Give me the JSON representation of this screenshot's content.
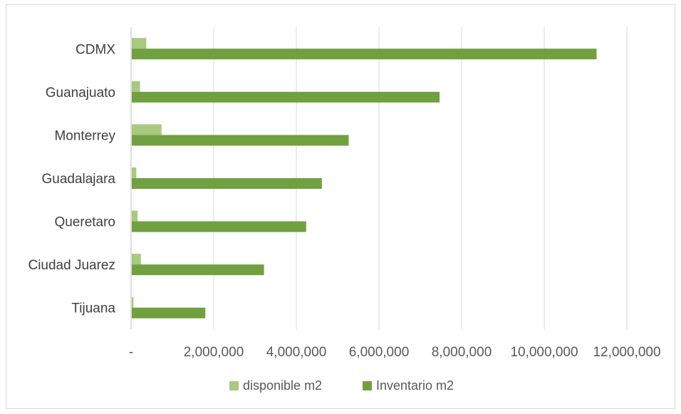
{
  "chart_data": {
    "type": "bar",
    "orientation": "horizontal",
    "title": "",
    "xlabel": "",
    "ylabel": "",
    "categories": [
      "CDMX",
      "Guanajuato",
      "Monterrey",
      "Guadalajara",
      "Queretaro",
      "Ciudad Juarez",
      "Tijuana"
    ],
    "series": [
      {
        "name": "disponible m2",
        "color": "#a9c97f",
        "values": [
          350000,
          200000,
          720000,
          110000,
          140000,
          220000,
          40000
        ]
      },
      {
        "name": "Inventario m2",
        "color": "#70a040",
        "values": [
          11250000,
          7450000,
          5250000,
          4600000,
          4220000,
          3200000,
          1780000
        ]
      }
    ],
    "xlim": [
      0,
      12000000
    ],
    "xticks": [
      0,
      2000000,
      4000000,
      6000000,
      8000000,
      10000000,
      12000000
    ],
    "xtick_labels": [
      "-",
      "2,000,000",
      "4,000,000",
      "6,000,000",
      "8,000,000",
      "10,000,000",
      "12,000,000"
    ],
    "grid": "vertical",
    "legend_position": "bottom"
  }
}
